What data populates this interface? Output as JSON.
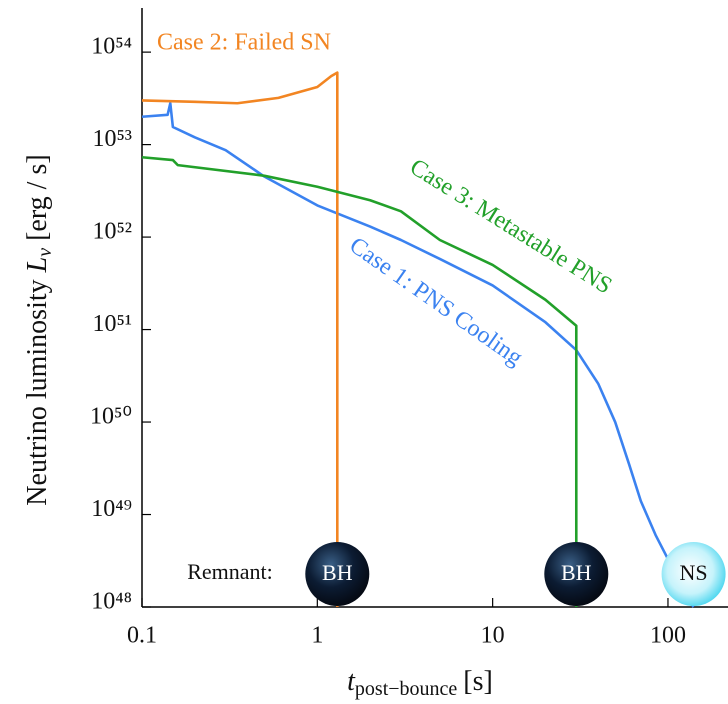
{
  "chart_data": {
    "type": "line",
    "x_label": {
      "symbol": "t",
      "subscript": "post−bounce",
      "unit": "[s]"
    },
    "y_label": {
      "text": "Neutrino luminosity",
      "symbol": "L",
      "subscript": "ν",
      "unit": "[erg / s]"
    },
    "xscale": "log",
    "yscale": "log",
    "xlim": [
      0.1,
      220
    ],
    "ylim": [
      1e+48,
      3e+54
    ],
    "xticks": [
      0.1,
      1,
      10,
      100
    ],
    "yticks": [
      {
        "value": 1e+48,
        "label": "10⁴⁸"
      },
      {
        "value": 1e+49,
        "label": "10⁴⁹"
      },
      {
        "value": 1e+50,
        "label": "10⁵⁰"
      },
      {
        "value": 1e+51,
        "label": "10⁵¹"
      },
      {
        "value": 1e+52,
        "label": "10⁵²"
      },
      {
        "value": 1e+53,
        "label": "10⁵³"
      },
      {
        "value": 1e+54,
        "label": "10⁵⁴"
      }
    ],
    "remnant_label": "Remnant:",
    "series": [
      {
        "name": "Case 1: PNS Cooling",
        "color": "#3b82f0",
        "remnant": "NS",
        "x": [
          0.1,
          0.14,
          0.145,
          0.15,
          0.2,
          0.3,
          0.5,
          1,
          2,
          3,
          5,
          10,
          20,
          30,
          40,
          50,
          60,
          70,
          85,
          100,
          115,
          130,
          140
        ],
        "values": [
          2e+53,
          2.1e+53,
          2.8e+53,
          1.55e+53,
          1.2e+53,
          8.7e+52,
          4.5e+52,
          2.2e+52,
          1.3e+52,
          9.3e+51,
          5.8e+51,
          3e+51,
          1.2e+51,
          6e+50,
          2.6e+50,
          1e+50,
          3.5e+49,
          1.4e+49,
          6e+48,
          3.3e+48,
          2e+48,
          1.2e+48,
          1e+48
        ]
      },
      {
        "name": "Case 2: Failed SN",
        "color": "#f28522",
        "remnant": "BH",
        "x": [
          0.1,
          0.2,
          0.35,
          0.6,
          1,
          1.2,
          1.3,
          1.3
        ],
        "values": [
          3e+53,
          2.9e+53,
          2.8e+53,
          3.2e+53,
          4.2e+53,
          5.5e+53,
          6e+53,
          1e+48
        ]
      },
      {
        "name": "Case 3: Metastable PNS",
        "color": "#22a02a",
        "remnant": "BH",
        "x": [
          0.1,
          0.15,
          0.16,
          0.5,
          1,
          2,
          3,
          5,
          10,
          20,
          30,
          30
        ],
        "values": [
          7.3e+52,
          6.8e+52,
          6e+52,
          4.6e+52,
          3.5e+52,
          2.5e+52,
          1.9e+52,
          9.3e+51,
          5e+51,
          2.1e+51,
          1.1e+51,
          1e+48
        ]
      }
    ]
  }
}
